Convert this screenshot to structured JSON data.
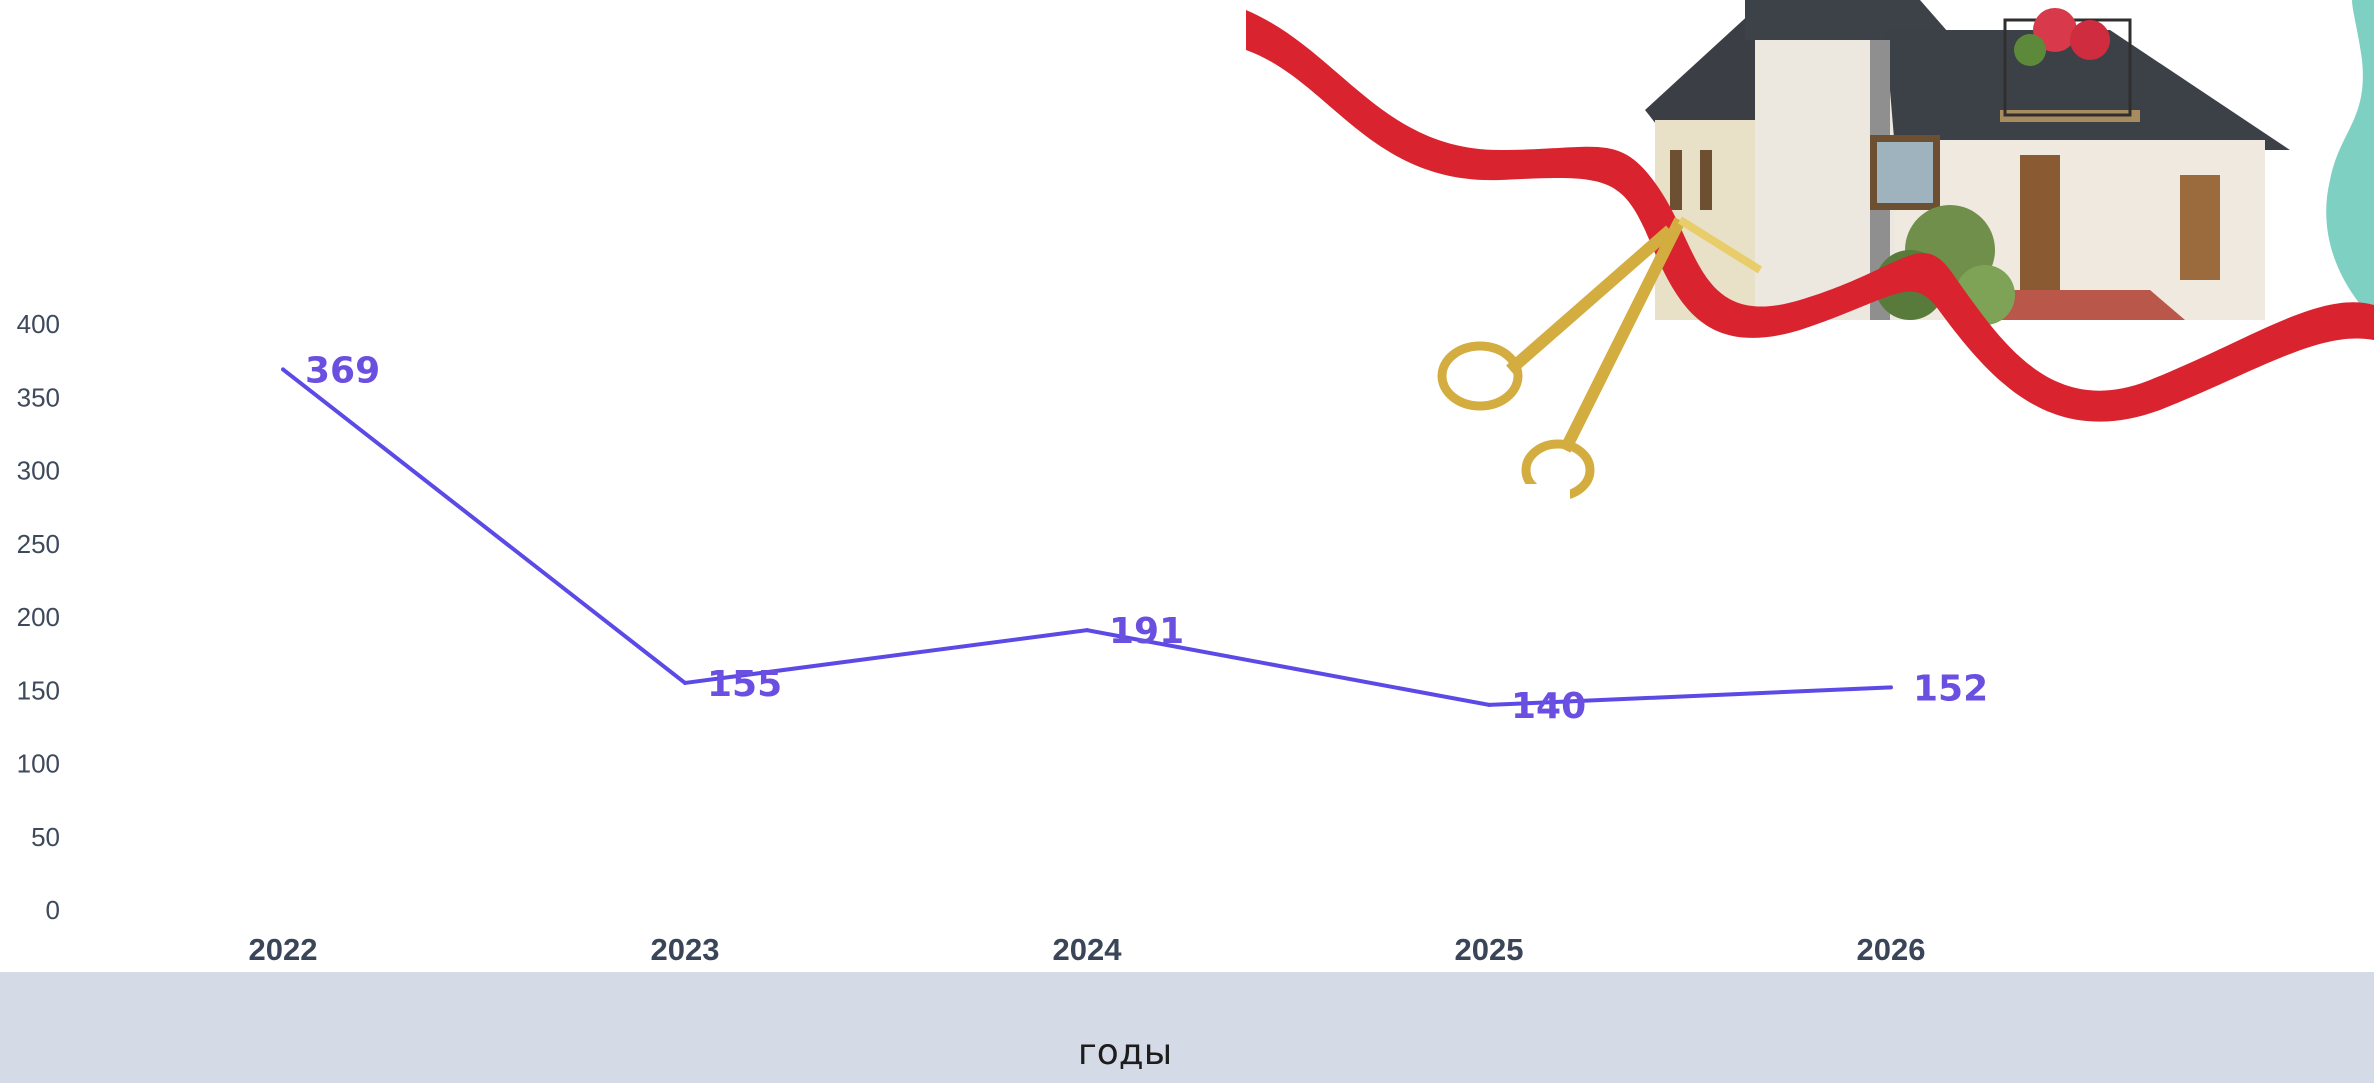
{
  "colors": {
    "line": "#5b4ae6",
    "label": "#6a4fe0",
    "footer": "#d5dbe6",
    "ribbon": "#d9232e",
    "teal": "#7ed1c2"
  },
  "illustration": {
    "name": "house-with-ribbon-and-scissors"
  },
  "chart_data": {
    "type": "line",
    "title": "",
    "xlabel": "годы",
    "ylabel": "",
    "categories": [
      "2022",
      "2023",
      "2024",
      "2025",
      "2026"
    ],
    "series": [
      {
        "values": [
          369,
          155,
          191,
          140,
          152
        ]
      }
    ],
    "ylim": [
      0,
      400
    ],
    "yticks": [
      0,
      50,
      100,
      150,
      200,
      250,
      300,
      350,
      400
    ],
    "grid": false,
    "data_labels": true
  }
}
